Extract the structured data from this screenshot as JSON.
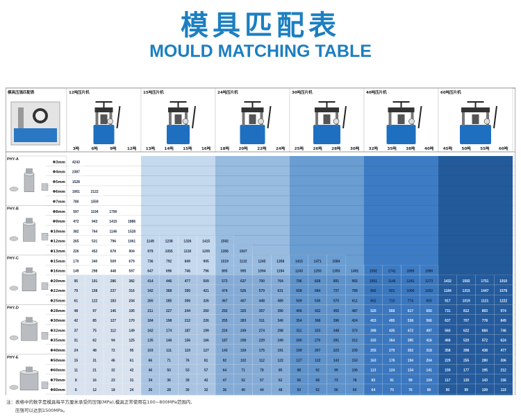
{
  "title_cn": "模具匹配表",
  "title_en": "MOULD MATCHING TABLE",
  "corner_label": "模具压强匹配表",
  "presses": [
    {
      "label": "12吨压片机",
      "tons": [
        "3吨",
        "6吨",
        "9吨",
        "12吨"
      ]
    },
    {
      "label": "15吨压片机",
      "tons": [
        "13吨",
        "14吨",
        "15吨",
        "16吨"
      ]
    },
    {
      "label": "24吨压片机",
      "tons": [
        "18吨",
        "20吨",
        "22吨",
        "24吨"
      ]
    },
    {
      "label": "30吨压片机",
      "tons": [
        "25吨",
        "26吨",
        "28吨",
        "30吨"
      ]
    },
    {
      "label": "40吨压片机",
      "tons": [
        "32吨",
        "35吨",
        "38吨",
        "40吨"
      ]
    },
    {
      "label": "60吨压片机",
      "tons": [
        "45吨",
        "50吨",
        "55吨",
        "60吨"
      ]
    }
  ],
  "groups": [
    {
      "name": "PHY-A",
      "rows": [
        {
          "size": "Φ3mm",
          "values": [
            "4243"
          ]
        },
        {
          "size": "Φ4mm",
          "values": [
            "2387"
          ]
        },
        {
          "size": "Φ5mm",
          "values": [
            "1528"
          ]
        },
        {
          "size": "Φ6mm",
          "values": [
            "1061",
            "2122"
          ]
        },
        {
          "size": "Φ7mm",
          "values": [
            "780",
            "1559"
          ]
        }
      ]
    },
    {
      "name": "PHY-B",
      "rows": [
        {
          "size": "Φ8mm",
          "values": [
            "597",
            "1194",
            "1790"
          ]
        },
        {
          "size": "Φ9mm",
          "values": [
            "472",
            "943",
            "1415",
            "1886"
          ]
        },
        {
          "size": "Φ10mm",
          "values": [
            "382",
            "764",
            "1146",
            "1528"
          ]
        },
        {
          "size": "Φ12mm",
          "values": [
            "265",
            "531",
            "796",
            "1061",
            "1149",
            "1238",
            "1326",
            "1415",
            "1592"
          ]
        },
        {
          "size": "Φ13mm",
          "values": [
            "226",
            "452",
            "678",
            "904",
            "979",
            "1055",
            "1130",
            "1205",
            "1356",
            "1507"
          ]
        }
      ]
    },
    {
      "name": "PHY-C",
      "rows": [
        {
          "size": "Φ15mm",
          "values": [
            "170",
            "340",
            "509",
            "679",
            "736",
            "792",
            "849",
            "905",
            "1019",
            "1132",
            "1245",
            "1358",
            "1415",
            "1471",
            "1584"
          ]
        },
        {
          "size": "Φ16mm",
          "values": [
            "149",
            "298",
            "448",
            "597",
            "647",
            "696",
            "746",
            "796",
            "895",
            "995",
            "1094",
            "1194",
            "1243",
            "1293",
            "1393",
            "1492",
            "1592",
            "1741",
            "1890",
            "1990"
          ]
        },
        {
          "size": "Φ20mm",
          "values": [
            "95",
            "191",
            "286",
            "382",
            "414",
            "446",
            "477",
            "509",
            "573",
            "637",
            "700",
            "764",
            "796",
            "828",
            "891",
            "955",
            "1051",
            "1146",
            "1241",
            "1273",
            "1432",
            "1592",
            "1751",
            "1910"
          ]
        },
        {
          "size": "Φ22mm",
          "values": [
            "79",
            "158",
            "237",
            "316",
            "342",
            "368",
            "395",
            "421",
            "474",
            "526",
            "579",
            "631",
            "658",
            "684",
            "737",
            "789",
            "842",
            "921",
            "1000",
            "1052",
            "1184",
            "1315",
            "1447",
            "1578"
          ]
        },
        {
          "size": "Φ25mm",
          "values": [
            "61",
            "122",
            "183",
            "244",
            "265",
            "285",
            "306",
            "326",
            "367",
            "407",
            "448",
            "489",
            "509",
            "530",
            "570",
            "611",
            "652",
            "713",
            "774",
            "815",
            "917",
            "1019",
            "1121",
            "1222"
          ]
        }
      ]
    },
    {
      "name": "PHY-D",
      "rows": [
        {
          "size": "Φ28mm",
          "values": [
            "48",
            "97",
            "146",
            "195",
            "211",
            "227",
            "244",
            "260",
            "292",
            "325",
            "357",
            "390",
            "406",
            "422",
            "455",
            "487",
            "520",
            "568",
            "617",
            "650",
            "731",
            "812",
            "893",
            "974"
          ]
        },
        {
          "size": "Φ30mm",
          "values": [
            "42",
            "85",
            "127",
            "170",
            "184",
            "198",
            "212",
            "226",
            "255",
            "283",
            "311",
            "340",
            "354",
            "368",
            "396",
            "424",
            "453",
            "495",
            "538",
            "566",
            "637",
            "707",
            "778",
            "849"
          ]
        },
        {
          "size": "Φ32mm",
          "values": [
            "37",
            "75",
            "112",
            "149",
            "162",
            "174",
            "187",
            "199",
            "224",
            "249",
            "274",
            "298",
            "311",
            "323",
            "348",
            "373",
            "398",
            "435",
            "472",
            "497",
            "560",
            "622",
            "684",
            "746"
          ]
        },
        {
          "size": "Φ35mm",
          "values": [
            "31",
            "62",
            "94",
            "125",
            "135",
            "146",
            "156",
            "166",
            "187",
            "208",
            "229",
            "249",
            "260",
            "270",
            "291",
            "312",
            "333",
            "364",
            "395",
            "416",
            "468",
            "520",
            "572",
            "624"
          ]
        },
        {
          "size": "Φ40mm",
          "values": [
            "24",
            "48",
            "72",
            "95",
            "103",
            "111",
            "119",
            "127",
            "143",
            "159",
            "175",
            "191",
            "199",
            "207",
            "223",
            "239",
            "255",
            "279",
            "302",
            "318",
            "358",
            "398",
            "438",
            "477"
          ]
        }
      ]
    },
    {
      "name": "PHY-E",
      "rows": [
        {
          "size": "Φ50mm",
          "values": [
            "15",
            "31",
            "46",
            "61",
            "66",
            "71",
            "76",
            "81",
            "92",
            "102",
            "112",
            "122",
            "127",
            "132",
            "143",
            "153",
            "163",
            "178",
            "194",
            "204",
            "229",
            "255",
            "280",
            "306"
          ]
        },
        {
          "size": "Φ60mm",
          "values": [
            "11",
            "21",
            "32",
            "42",
            "46",
            "50",
            "53",
            "57",
            "64",
            "71",
            "78",
            "85",
            "88",
            "92",
            "99",
            "106",
            "113",
            "124",
            "134",
            "141",
            "159",
            "177",
            "195",
            "212"
          ]
        },
        {
          "size": "Φ70mm",
          "values": [
            "8",
            "16",
            "23",
            "31",
            "34",
            "36",
            "39",
            "42",
            "47",
            "52",
            "57",
            "62",
            "65",
            "68",
            "73",
            "78",
            "83",
            "91",
            "99",
            "104",
            "117",
            "130",
            "143",
            "156"
          ]
        },
        {
          "size": "Φ80mm",
          "values": [
            "6",
            "12",
            "18",
            "24",
            "26",
            "28",
            "30",
            "32",
            "36",
            "40",
            "44",
            "48",
            "50",
            "52",
            "56",
            "60",
            "64",
            "70",
            "76",
            "80",
            "90",
            "99",
            "109",
            "119"
          ]
        },
        {
          "size": "Φ100mm",
          "values": [
            "4",
            "8",
            "11",
            "15",
            "17",
            "18",
            "19",
            "20",
            "23",
            "25",
            "28",
            "31",
            "32",
            "33",
            "36",
            "38",
            "41",
            "45",
            "48",
            "51",
            "57",
            "64",
            "70",
            "76"
          ]
        }
      ]
    }
  ],
  "note_line1": "注：表格中的数字是模具每平方厘米承受的压强(MPa),模具正常使用在100~800MPa范围内,",
  "note_line2": "压强可以达到1500MPa。",
  "colors": {
    "title": "#1c7fc1",
    "bands": [
      "#ffffff",
      "#c5d9ee",
      "#98bbe0",
      "#6a9dd2",
      "#3d7cc4",
      "#235a9a"
    ],
    "row_overlay": "#2e62ad"
  }
}
